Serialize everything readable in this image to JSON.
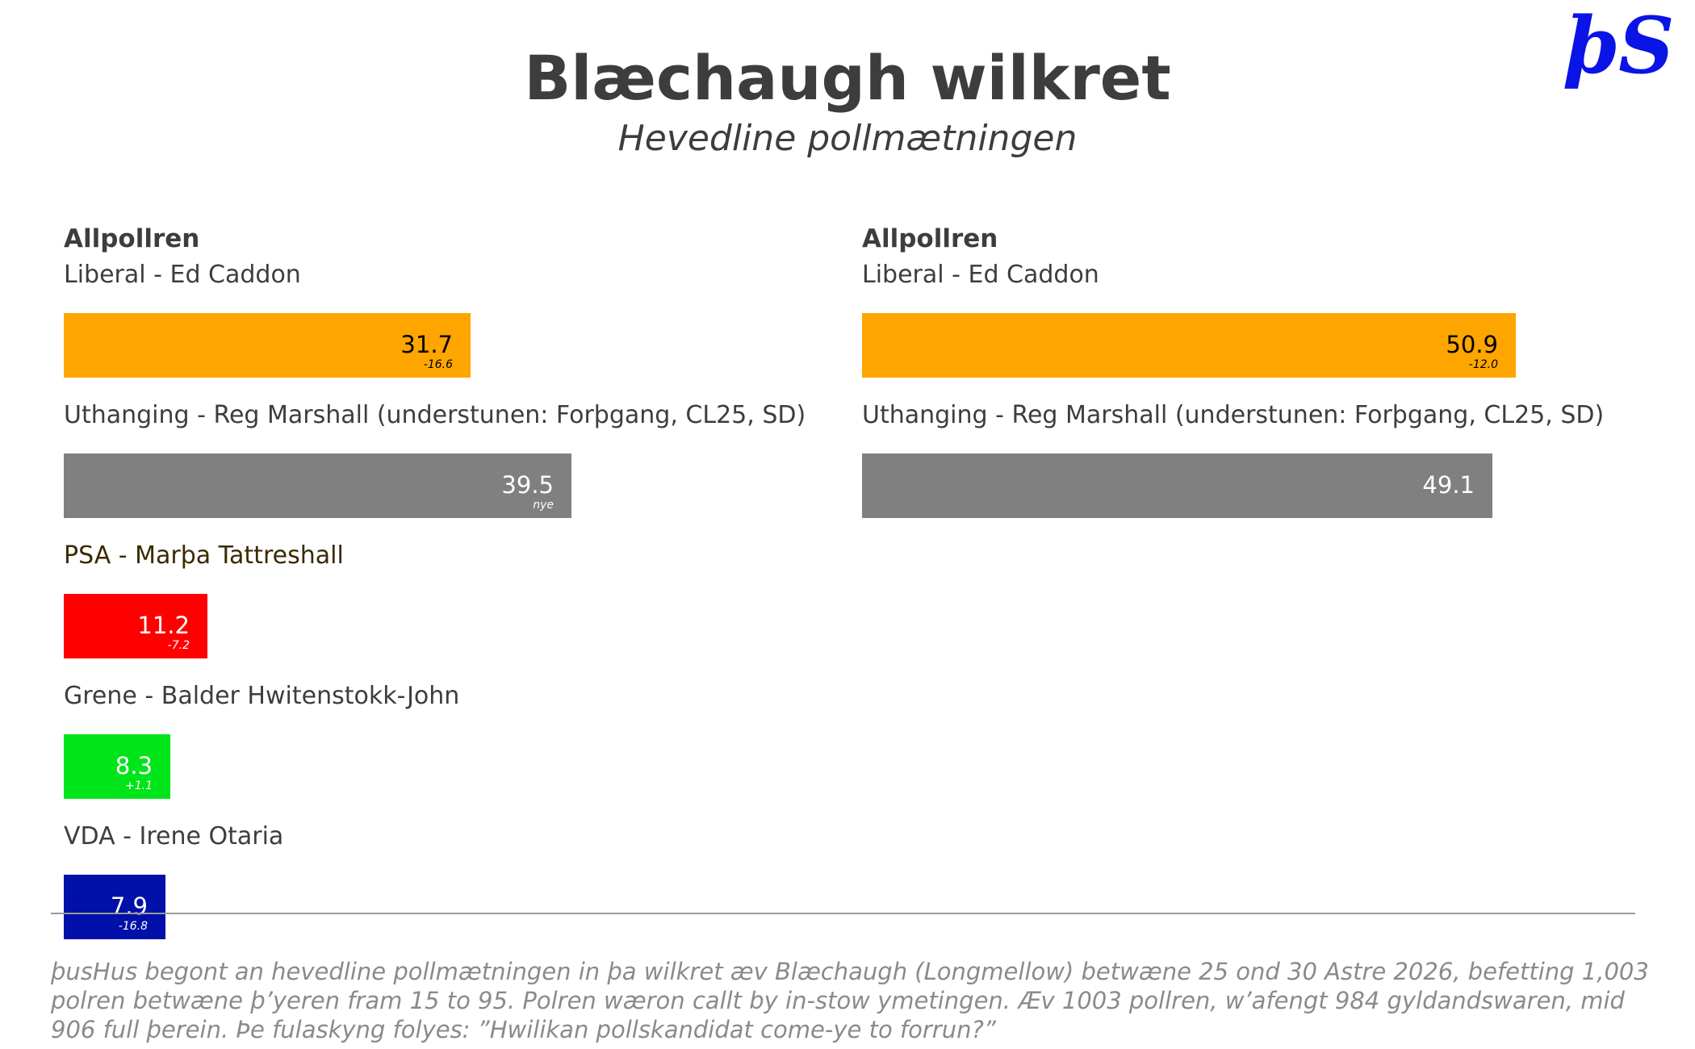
{
  "header": {
    "title": "Blæchaugh wilkret",
    "subtitle": "Hevedline pollmætningen",
    "logo_text": "þS"
  },
  "colors": {
    "liberal": "#ffa500",
    "uthanging": "#808080",
    "psa": "#ff0000",
    "grene": "#00e51a",
    "vda": "#0010a8",
    "logo": "#0a14e6"
  },
  "chart_data": [
    {
      "type": "bar",
      "orientation": "horizontal",
      "title": "Allpollren",
      "categories": [
        "Liberal - Ed Caddon",
        "Uthanging - Reg Marshall (understunen: Forþgang, CL25, SD)",
        "PSA - Marþa Tattreshall",
        "Grene - Balder Hwitenstokk-John",
        "VDA - Irene Otaria"
      ],
      "values": [
        31.7,
        39.5,
        11.2,
        8.3,
        7.9
      ],
      "value_labels": [
        "31.7",
        "39.5",
        "11.2",
        "8.3",
        "7.9"
      ],
      "changes": [
        "-16.6",
        "nye",
        "-7.2",
        "+1.1",
        "-16.8"
      ],
      "colors": [
        "#ffa500",
        "#808080",
        "#ff0000",
        "#00e51a",
        "#0010a8"
      ],
      "label_colors": [
        "#000000",
        "#ffffff",
        "#ffffff",
        "#ffffff",
        "#ffffff"
      ],
      "xlim": [
        0,
        55
      ]
    },
    {
      "type": "bar",
      "orientation": "horizontal",
      "title": "Allpollren",
      "categories": [
        "Liberal - Ed Caddon",
        "Uthanging - Reg Marshall (understunen: Forþgang, CL25, SD)"
      ],
      "values": [
        50.9,
        49.1
      ],
      "value_labels": [
        "50.9",
        "49.1"
      ],
      "changes": [
        "-12.0",
        ""
      ],
      "colors": [
        "#ffa500",
        "#808080"
      ],
      "label_colors": [
        "#000000",
        "#ffffff"
      ],
      "xlim": [
        0,
        55
      ]
    }
  ],
  "footnote": "þusHus begont an hevedline pollmætningen in þa wilkret æv Blæchaugh (Longmellow) betwæne 25 ond 30 Astre 2026, befetting 1,003 polren betwæne þ’yeren fram 15 to 95. Polren wæron callt by in-stow ymetingen. Æv 1003 pollren, w’afengt 984 gyldandswaren, mid 906 full þerein. Þe fulaskyng folyes: ”Hwilikan pollskandidat come-ye to forrun?”"
}
